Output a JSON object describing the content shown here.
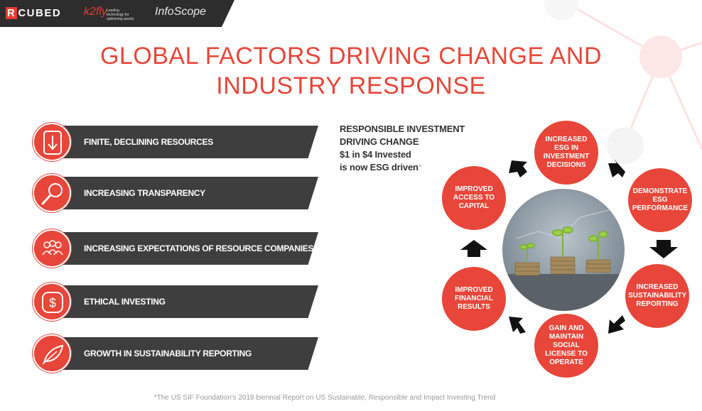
{
  "brand": {
    "logo_rcubed_r": "R",
    "logo_rcubed_rest": "CUBED",
    "logo_kefly": "k2fly",
    "logo_kefly_tagline": "Leading technology for optimising assets",
    "logo_infoscope": "InfoScope"
  },
  "title": {
    "line1": "GLOBAL FACTORS DRIVING CHANGE AND",
    "line2": "INDUSTRY RESPONSE"
  },
  "factors": [
    {
      "label": "FINITE, DECLINING RESOURCES",
      "icon": "down-arrow-icon"
    },
    {
      "label": "INCREASING TRANSPARENCY",
      "icon": "magnifier-icon"
    },
    {
      "label": "INCREASING EXPECTATIONS OF RESOURCE COMPANIES",
      "icon": "people-group-icon"
    },
    {
      "label": "ETHICAL INVESTING",
      "icon": "dollar-icon"
    },
    {
      "label": "GROWTH IN SUSTAINABILITY REPORTING",
      "icon": "leaf-icon"
    }
  ],
  "investment": {
    "line1": "RESPONSIBLE INVESTMENT",
    "line2": "DRIVING CHANGE",
    "line3": "$1 in $4 Invested",
    "line4": "is now ESG driven",
    "asterisk": "*"
  },
  "cycle": [
    {
      "label": "INCREASED ESG IN INVESTMENT DECISIONS"
    },
    {
      "label": "DEMONSTRATE ESG PERFORMANCE"
    },
    {
      "label": "INCREASED SUSTAINABILITY REPORTING"
    },
    {
      "label": "GAIN AND MAINTAIN SOCIAL LICENSE TO OPERATE"
    },
    {
      "label": "IMPROVED FINANCIAL RESULTS"
    },
    {
      "label": "IMPROVED ACCESS TO CAPITAL"
    }
  ],
  "colors": {
    "accent": "#e8463a",
    "bar": "#3e3e3e"
  },
  "footnote": "*The US SIF Foundation's 2018 biennial Report on US Sustainable, Responsible and Impact Investing Trend"
}
